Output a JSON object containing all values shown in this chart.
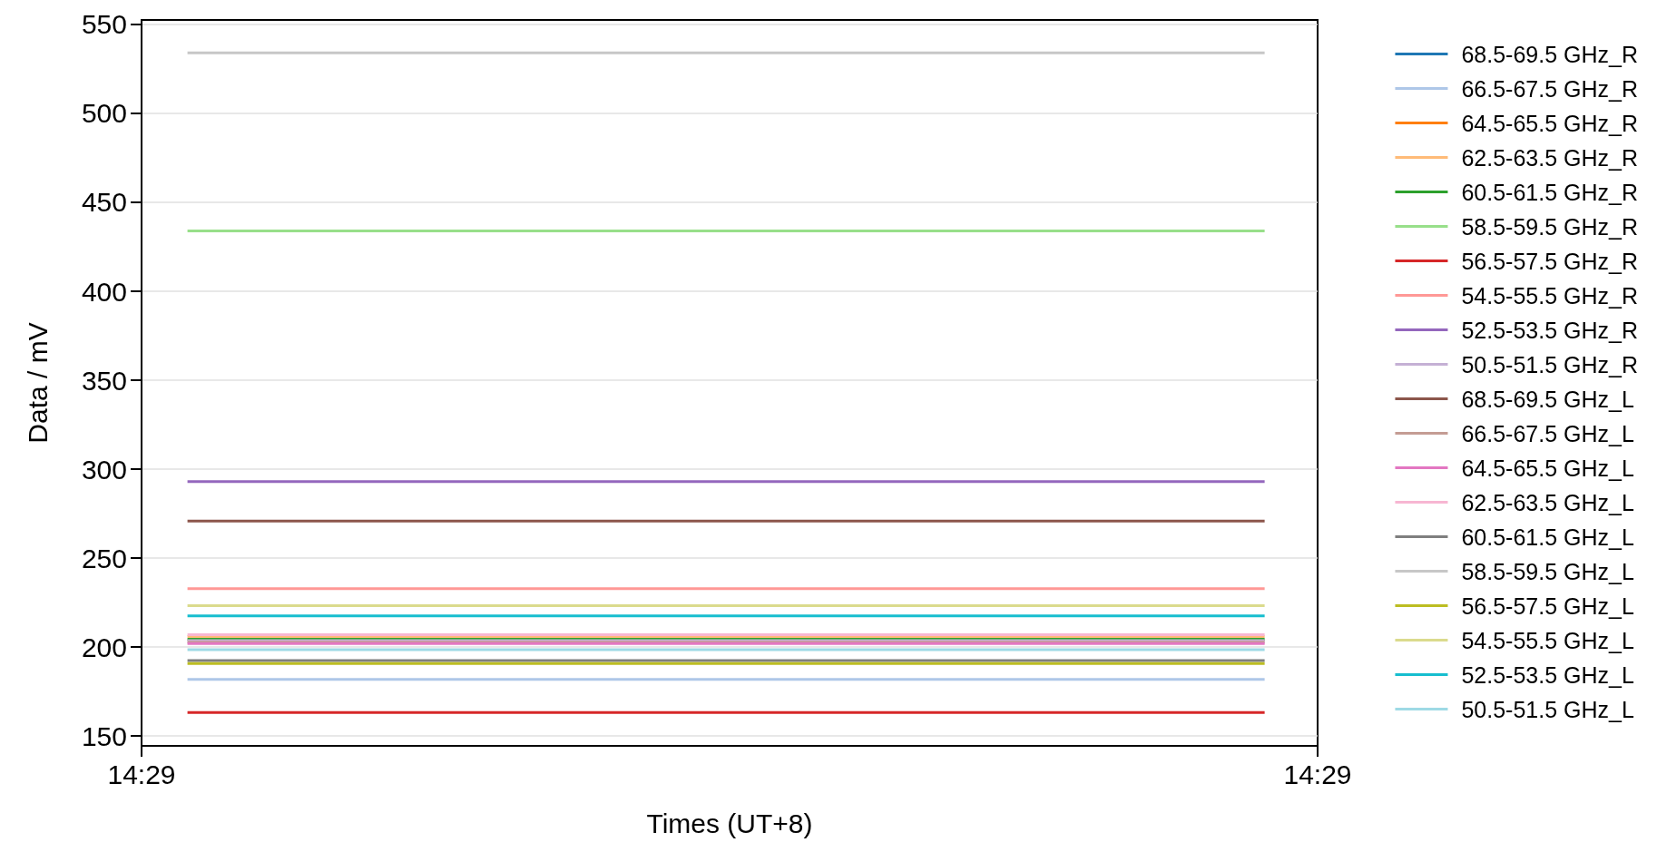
{
  "chart_data": {
    "type": "line",
    "xlabel": "Times (UT+8)",
    "ylabel": "Data / mV",
    "x": [
      14.4836,
      14.4897
    ],
    "xlim": [
      14.48334,
      14.49
    ],
    "xticks": [
      {
        "value": 14.48334,
        "label": "14:29"
      },
      {
        "value": 14.49,
        "label": "14:29"
      }
    ],
    "ylim": [
      144.5,
      552.5
    ],
    "yticks": [
      150,
      200,
      250,
      300,
      350,
      400,
      450,
      500,
      550
    ],
    "grid": "y",
    "legend": "right",
    "marker": "none",
    "line_style": "solid",
    "series": [
      {
        "name": "68.5-69.5 GHz_R",
        "color": "#1f77b4",
        "values": [
          null,
          null
        ]
      },
      {
        "name": "66.5-67.5 GHz_R",
        "color": "#aec7e8",
        "values": [
          181.8,
          181.8
        ]
      },
      {
        "name": "64.5-65.5 GHz_R",
        "color": "#ff7f0e",
        "values": [
          null,
          null
        ]
      },
      {
        "name": "62.5-63.5 GHz_R",
        "color": "#ffbb78",
        "values": [
          206,
          206
        ]
      },
      {
        "name": "60.5-61.5 GHz_R",
        "color": "#2ca02c",
        "values": [
          204.4,
          204.4
        ]
      },
      {
        "name": "58.5-59.5 GHz_R",
        "color": "#98df8a",
        "values": [
          433.9,
          433.9
        ]
      },
      {
        "name": "56.5-57.5 GHz_R",
        "color": "#d62728",
        "values": [
          163.2,
          163.2
        ]
      },
      {
        "name": "54.5-55.5 GHz_R",
        "color": "#ff9896",
        "values": [
          232.8,
          232.8
        ]
      },
      {
        "name": "52.5-53.5 GHz_R",
        "color": "#9467bd",
        "values": [
          293,
          293
        ]
      },
      {
        "name": "50.5-51.5 GHz_R",
        "color": "#c5b0d5",
        "values": [
          203.6,
          203.6
        ]
      },
      {
        "name": "68.5-69.5 GHz_L",
        "color": "#8c564b",
        "values": [
          270.9,
          270.9
        ]
      },
      {
        "name": "66.5-67.5 GHz_L",
        "color": "#c49c94",
        "values": [
          202.8,
          202.8
        ]
      },
      {
        "name": "64.5-65.5 GHz_L",
        "color": "#e377c2",
        "values": [
          202,
          202
        ]
      },
      {
        "name": "62.5-63.5 GHz_L",
        "color": "#f7b6d2",
        "values": [
          207,
          207
        ]
      },
      {
        "name": "60.5-61.5 GHz_L",
        "color": "#7f7f7f",
        "values": [
          192.5,
          192.5
        ]
      },
      {
        "name": "58.5-59.5 GHz_L",
        "color": "#c7c7c7",
        "values": [
          534,
          534
        ]
      },
      {
        "name": "56.5-57.5 GHz_L",
        "color": "#bcbd22",
        "values": [
          190.8,
          190.8
        ]
      },
      {
        "name": "54.5-55.5 GHz_L",
        "color": "#dbdb8d",
        "values": [
          223.3,
          223.3
        ]
      },
      {
        "name": "52.5-53.5 GHz_L",
        "color": "#17becf",
        "values": [
          217.5,
          217.5
        ]
      },
      {
        "name": "50.5-51.5 GHz_L",
        "color": "#9edae5",
        "values": [
          198.5,
          198.5
        ]
      }
    ]
  }
}
